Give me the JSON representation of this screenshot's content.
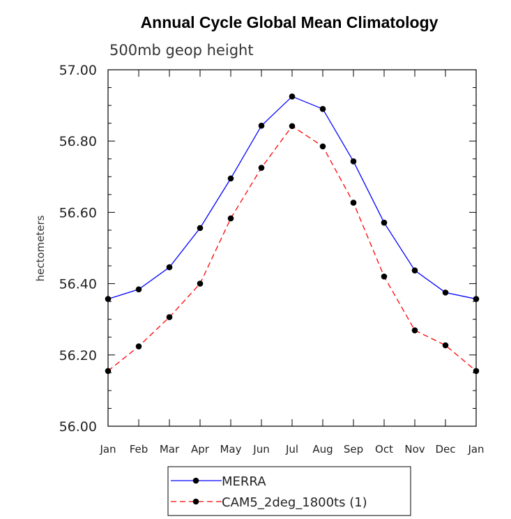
{
  "chart_data": {
    "type": "line",
    "title": "Annual Cycle Global Mean Climatology",
    "subtitle": "500mb geop height",
    "ylabel": "hectometers",
    "xlabel": "",
    "categories": [
      "Jan",
      "Feb",
      "Mar",
      "Apr",
      "May",
      "Jun",
      "Jul",
      "Aug",
      "Sep",
      "Oct",
      "Nov",
      "Dec",
      "Jan"
    ],
    "ylim": [
      56.0,
      57.0
    ],
    "yticks": [
      "56.00",
      "56.20",
      "56.40",
      "56.60",
      "56.80",
      "57.00"
    ],
    "grid": false,
    "legend_position": "bottom",
    "series": [
      {
        "name": "MERRA",
        "color": "#0000ff",
        "line_style": "solid",
        "marker": "filled-circle",
        "values": [
          56.357,
          56.384,
          56.446,
          56.556,
          56.695,
          56.843,
          56.925,
          56.89,
          56.743,
          56.571,
          56.437,
          56.375,
          56.357
        ]
      },
      {
        "name": "CAM5_2deg_1800ts (1)",
        "color": "#ff0000",
        "line_style": "dashed",
        "marker": "filled-circle",
        "values": [
          56.155,
          56.224,
          56.306,
          56.4,
          56.583,
          56.725,
          56.842,
          56.785,
          56.627,
          56.42,
          56.269,
          56.227,
          56.155
        ]
      }
    ]
  }
}
